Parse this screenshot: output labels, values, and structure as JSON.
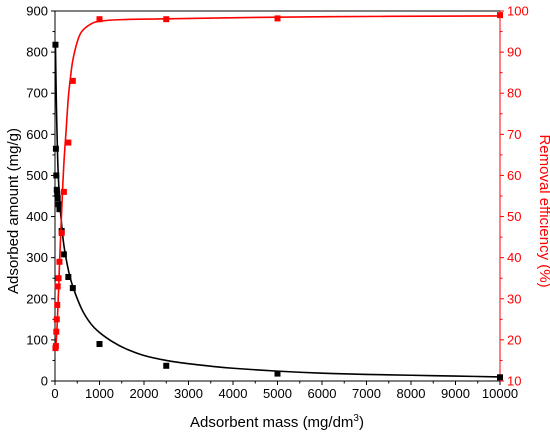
{
  "chart_data": {
    "type": "scatter",
    "xlabel": "Adsorbent mass (mg/dm",
    "xlabel_sup": "3",
    "xlabel_end": ")",
    "ylabel_left": "Adsorbed amount (mg/g)",
    "ylabel_right": "Removal efficiency (%)",
    "xlim": [
      0,
      10000
    ],
    "ylim_left": [
      0,
      900
    ],
    "ylim_right": [
      10,
      100
    ],
    "x_ticks": [
      0,
      1000,
      2000,
      3000,
      4000,
      5000,
      6000,
      7000,
      8000,
      9000,
      10000
    ],
    "y_left_ticks": [
      0,
      100,
      200,
      300,
      400,
      500,
      600,
      700,
      800,
      900
    ],
    "y_right_ticks": [
      10,
      20,
      30,
      40,
      50,
      60,
      70,
      80,
      90,
      100
    ],
    "grid": false,
    "series": [
      {
        "axis": "left",
        "color": "#000000",
        "marker": "square",
        "x": [
          10,
          20,
          30,
          40,
          50,
          60,
          80,
          100,
          150,
          200,
          300,
          400,
          1000,
          2500,
          5000,
          10000
        ],
        "y": [
          818,
          565,
          500,
          465,
          455,
          445,
          430,
          418,
          365,
          308,
          253,
          226,
          90,
          37,
          18,
          9
        ],
        "fit_x": [
          10,
          30,
          60,
          100,
          150,
          200,
          300,
          400,
          600,
          800,
          1000,
          1300,
          1600,
          2000,
          2500,
          3000,
          3500,
          4000,
          5000,
          6000,
          7000,
          8000,
          9000,
          10000
        ],
        "fit_y": [
          818,
          680,
          540,
          445,
          380,
          330,
          270,
          230,
          175,
          140,
          118,
          95,
          78,
          62,
          50,
          42,
          36,
          31,
          24,
          19,
          16,
          14,
          12,
          10
        ]
      },
      {
        "axis": "right",
        "color": "#ff0000",
        "marker": "square",
        "x": [
          10,
          20,
          30,
          40,
          50,
          60,
          80,
          100,
          150,
          200,
          300,
          400,
          1000,
          2500,
          5000,
          10000
        ],
        "y": [
          18,
          18.5,
          22,
          25,
          28.5,
          33,
          35,
          39,
          46,
          56,
          68,
          83,
          98,
          98,
          98.2,
          99
        ],
        "fit_x": [
          10,
          30,
          50,
          80,
          100,
          130,
          160,
          200,
          250,
          300,
          350,
          400,
          500,
          600,
          800,
          1000,
          1500,
          2500,
          5000,
          7500,
          10000
        ],
        "fit_y": [
          18,
          20,
          24,
          32,
          38,
          46,
          54,
          63,
          71,
          79,
          84,
          88,
          92.5,
          95,
          96.8,
          97.5,
          97.9,
          98.1,
          98.5,
          98.7,
          98.8
        ]
      }
    ]
  }
}
